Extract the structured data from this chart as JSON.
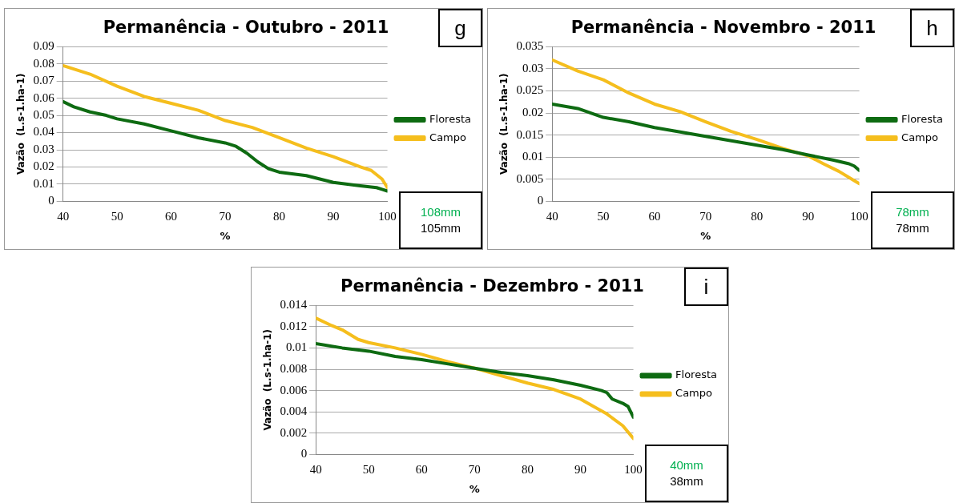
{
  "chart_data": [
    {
      "type": "line",
      "title": "Permanência - Outubro - 2011",
      "xlabel": "%",
      "ylabel": "Vazão  (L.s-1.ha-1)",
      "annotations": [
        "g",
        "108mm",
        "105mm"
      ],
      "xlim": [
        40,
        100
      ],
      "xticks": [
        40,
        50,
        60,
        70,
        80,
        90,
        100
      ],
      "ylim": [
        0,
        0.09
      ],
      "yticks": [
        0,
        0.01,
        0.02,
        0.03,
        0.04,
        0.05,
        0.06,
        0.07,
        0.08,
        0.09
      ],
      "grid": "y",
      "legend": "right",
      "marker": "none",
      "series": [
        {
          "name": "Floresta",
          "color": "#0e6b12",
          "x": [
            40,
            42,
            45,
            48,
            50,
            55,
            60,
            65,
            70,
            72,
            74,
            76,
            78,
            80,
            85,
            90,
            95,
            98,
            99,
            100
          ],
          "values": [
            0.058,
            0.055,
            0.052,
            0.05,
            0.048,
            0.045,
            0.041,
            0.037,
            0.034,
            0.032,
            0.028,
            0.023,
            0.019,
            0.017,
            0.015,
            0.011,
            0.009,
            0.008,
            0.007,
            0.006
          ]
        },
        {
          "name": "Campo",
          "color": "#f5be1d",
          "x": [
            40,
            45,
            50,
            55,
            60,
            65,
            70,
            75,
            80,
            85,
            90,
            95,
            97,
            99,
            100
          ],
          "values": [
            0.079,
            0.074,
            0.067,
            0.061,
            0.057,
            0.053,
            0.047,
            0.043,
            0.037,
            0.031,
            0.026,
            0.02,
            0.018,
            0.013,
            0.008
          ]
        }
      ]
    },
    {
      "type": "line",
      "title": "Permanência - Novembro - 2011",
      "xlabel": "%",
      "ylabel": "Vazão  (L.s-1.ha-1)",
      "annotations": [
        "h",
        "78mm",
        "78mm"
      ],
      "xlim": [
        40,
        100
      ],
      "xticks": [
        40,
        50,
        60,
        70,
        80,
        90,
        100
      ],
      "ylim": [
        0,
        0.035
      ],
      "yticks": [
        0,
        0.005,
        0.01,
        0.015,
        0.02,
        0.025,
        0.03,
        0.035
      ],
      "grid": "y",
      "legend": "right",
      "marker": "none",
      "series": [
        {
          "name": "Floresta",
          "color": "#0e6b12",
          "x": [
            40,
            45,
            50,
            55,
            60,
            65,
            70,
            75,
            80,
            85,
            90,
            95,
            98,
            99,
            100
          ],
          "values": [
            0.022,
            0.021,
            0.019,
            0.018,
            0.0167,
            0.0157,
            0.0147,
            0.0137,
            0.0127,
            0.0117,
            0.0105,
            0.0093,
            0.0085,
            0.008,
            0.007
          ]
        },
        {
          "name": "Campo",
          "color": "#f5be1d",
          "x": [
            40,
            45,
            50,
            55,
            60,
            65,
            70,
            75,
            80,
            85,
            90,
            93,
            96,
            99,
            100
          ],
          "values": [
            0.032,
            0.0295,
            0.0275,
            0.0245,
            0.022,
            0.0203,
            0.018,
            0.0158,
            0.014,
            0.012,
            0.0103,
            0.0085,
            0.0068,
            0.0047,
            0.004
          ]
        }
      ]
    },
    {
      "type": "line",
      "title": "Permanência - Dezembro - 2011",
      "xlabel": "%",
      "ylabel": "Vazão  (L.s-1.ha-1)",
      "annotations": [
        "i",
        "40mm",
        "38mm"
      ],
      "xlim": [
        40,
        100
      ],
      "xticks": [
        40,
        50,
        60,
        70,
        80,
        90,
        100
      ],
      "ylim": [
        0,
        0.014
      ],
      "yticks": [
        0,
        0.002,
        0.004,
        0.006,
        0.008,
        0.01,
        0.012,
        0.014
      ],
      "grid": "y",
      "legend": "right",
      "marker": "none",
      "series": [
        {
          "name": "Floresta",
          "color": "#0e6b12",
          "x": [
            40,
            45,
            50,
            55,
            60,
            65,
            70,
            75,
            80,
            85,
            90,
            94,
            95,
            96,
            98,
            99,
            100
          ],
          "values": [
            0.0104,
            0.01,
            0.0097,
            0.0092,
            0.0089,
            0.0085,
            0.0081,
            0.0077,
            0.0074,
            0.007,
            0.0065,
            0.006,
            0.0058,
            0.0052,
            0.0048,
            0.0045,
            0.0035
          ]
        },
        {
          "name": "Campo",
          "color": "#f5be1d",
          "x": [
            40,
            43,
            45,
            48,
            50,
            55,
            60,
            65,
            70,
            75,
            80,
            85,
            90,
            95,
            98,
            100
          ],
          "values": [
            0.0128,
            0.0121,
            0.0117,
            0.0108,
            0.0105,
            0.01,
            0.0094,
            0.0087,
            0.0081,
            0.0074,
            0.0067,
            0.0061,
            0.0052,
            0.0038,
            0.0027,
            0.0015
          ]
        }
      ]
    }
  ]
}
